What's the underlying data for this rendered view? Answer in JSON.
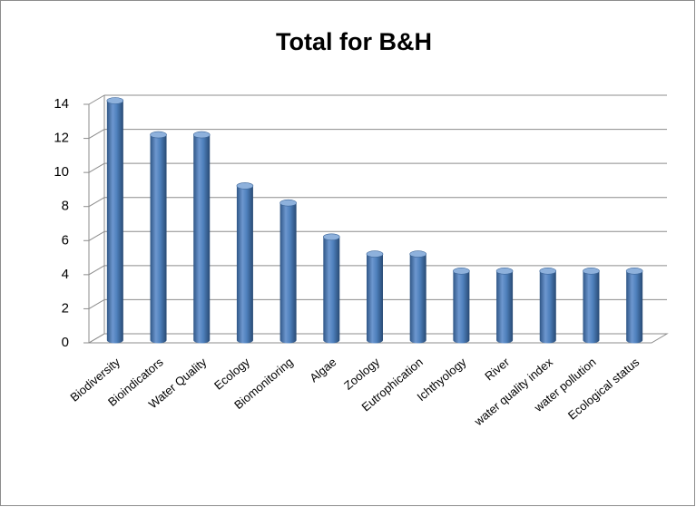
{
  "chart_data": {
    "type": "bar",
    "title": "Total for B&H",
    "categories": [
      "Biodiversity",
      "Bioindicators",
      "Water Quality",
      "Ecology",
      "Biomonitoring",
      "Algae",
      "Zoology",
      "Eutrophication",
      "Ichthyology",
      "River",
      "water quality index",
      "water pollution",
      "Ecological status"
    ],
    "values": [
      14,
      12,
      12,
      9,
      8,
      6,
      5,
      5,
      4,
      4,
      4,
      4,
      4
    ],
    "color": "#4f81bd",
    "ylim": [
      0,
      14
    ],
    "yticks": [
      0,
      2,
      4,
      6,
      8,
      10,
      12,
      14
    ],
    "grid": true
  }
}
